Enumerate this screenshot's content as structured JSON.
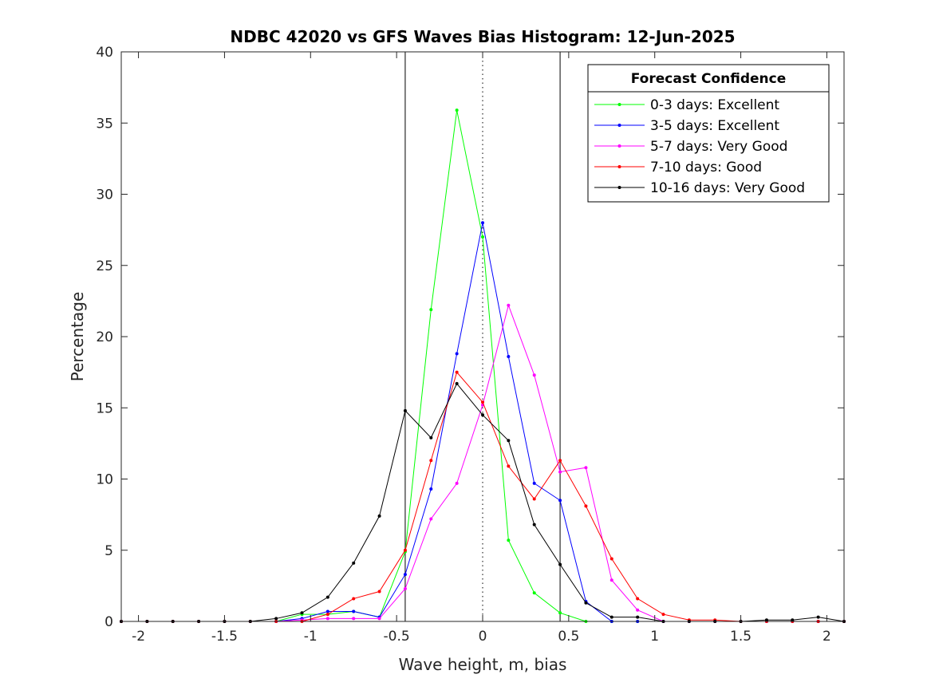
{
  "chart_data": {
    "type": "line",
    "title": "NDBC 42020 vs GFS Waves Bias Histogram: 12-Jun-2025",
    "xlabel": "Wave height, m, bias",
    "ylabel": "Percentage",
    "xlim": [
      -2.1,
      2.1
    ],
    "ylim": [
      0,
      40
    ],
    "xticks": [
      -2,
      -1.5,
      -1,
      -0.5,
      0,
      0.5,
      1,
      1.5,
      2
    ],
    "xtick_labels": [
      "-2",
      "-1.5",
      "-1",
      "-0.5",
      "0",
      "0.5",
      "1",
      "1.5",
      "2"
    ],
    "yticks": [
      0,
      5,
      10,
      15,
      20,
      25,
      30,
      35,
      40
    ],
    "ytick_labels": [
      "0",
      "5",
      "10",
      "15",
      "20",
      "25",
      "30",
      "35",
      "40"
    ],
    "grid": false,
    "legend": {
      "title": "Forecast Confidence",
      "location": "top-right"
    },
    "reference_lines": [
      {
        "x": -0.45,
        "style": "solid",
        "color": "#000000"
      },
      {
        "x": 0,
        "style": "dotted",
        "color": "#000000"
      },
      {
        "x": 0.45,
        "style": "solid",
        "color": "#000000"
      }
    ],
    "x": [
      -2.1,
      -1.95,
      -1.8,
      -1.65,
      -1.5,
      -1.35,
      -1.2,
      -1.05,
      -0.9,
      -0.75,
      -0.6,
      -0.45,
      -0.3,
      -0.15,
      0,
      0.15,
      0.3,
      0.45,
      0.6,
      0.75,
      0.9,
      1.05,
      1.2,
      1.35,
      1.5,
      1.65,
      1.8,
      1.95,
      2.1
    ],
    "series": [
      {
        "name": "0-3 days: Excellent",
        "color": "#00ff00",
        "values": [
          0,
          0,
          0,
          0,
          0,
          0,
          0,
          0.5,
          0.5,
          0.7,
          0.3,
          4.9,
          21.9,
          35.9,
          27.0,
          5.7,
          2.0,
          0.6,
          0,
          0,
          0,
          0,
          0,
          0,
          0,
          0,
          0,
          0,
          0
        ]
      },
      {
        "name": "3-5 days: Excellent",
        "color": "#0000ff",
        "values": [
          0,
          0,
          0,
          0,
          0,
          0,
          0,
          0.2,
          0.7,
          0.7,
          0.3,
          3.3,
          9.3,
          18.8,
          28.0,
          18.6,
          9.7,
          8.5,
          1.4,
          0,
          0,
          0,
          0,
          0,
          0,
          0,
          0,
          0,
          0
        ]
      },
      {
        "name": "5-7 days: Very Good",
        "color": "#ff00ff",
        "values": [
          0,
          0,
          0,
          0,
          0,
          0,
          0,
          0.1,
          0.2,
          0.2,
          0.2,
          2.3,
          7.2,
          9.7,
          15.2,
          22.2,
          17.3,
          10.5,
          10.8,
          2.9,
          0.8,
          0,
          0,
          0,
          0,
          0,
          0,
          0,
          0
        ]
      },
      {
        "name": "7-10 days: Good",
        "color": "#ff0000",
        "values": [
          0,
          0,
          0,
          0,
          0,
          0,
          0,
          0,
          0.5,
          1.6,
          2.1,
          5.0,
          11.3,
          17.5,
          15.4,
          10.9,
          8.6,
          11.3,
          8.1,
          4.4,
          1.6,
          0.5,
          0.1,
          0.1,
          0,
          0,
          0,
          0,
          0
        ]
      },
      {
        "name": "10-16 days: Very Good",
        "color": "#000000",
        "values": [
          0,
          0,
          0,
          0,
          0,
          0,
          0.2,
          0.6,
          1.7,
          4.1,
          7.4,
          14.8,
          12.9,
          16.7,
          14.5,
          12.7,
          6.8,
          4.0,
          1.3,
          0.3,
          0.3,
          0,
          0,
          0,
          0,
          0.1,
          0.1,
          0.3,
          0
        ]
      }
    ]
  }
}
